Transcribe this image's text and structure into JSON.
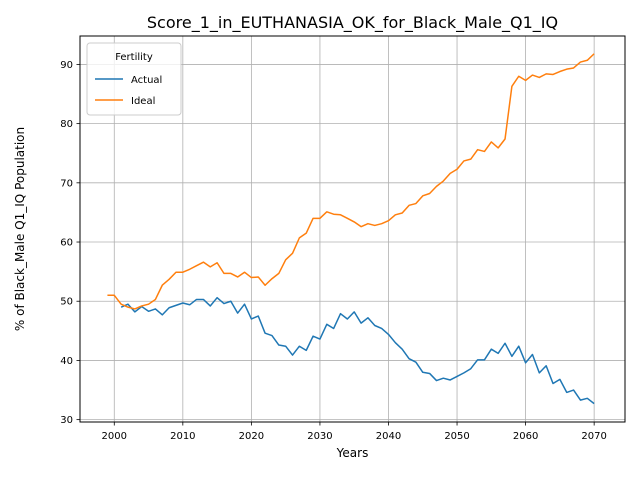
{
  "chart_data": {
    "type": "line",
    "title": "Score_1_in_EUTHANASIA_OK_for_Black_Male_Q1_IQ",
    "xlabel": "Years",
    "ylabel": "% of Black_Male Q1_IQ Population",
    "xlim": [
      1995,
      2074.5
    ],
    "ylim": [
      29.6,
      94.8
    ],
    "xticks": [
      2000,
      2010,
      2020,
      2030,
      2040,
      2050,
      2060,
      2070
    ],
    "yticks": [
      30,
      40,
      50,
      60,
      70,
      80,
      90
    ],
    "grid": true,
    "legend": {
      "title": "Fertility",
      "placement": "top-left"
    },
    "series": [
      {
        "name": "Actual",
        "color": "#1f77b4",
        "x": [
          2001,
          2002,
          2003,
          2004,
          2005,
          2006,
          2007,
          2008,
          2009,
          2010,
          2011,
          2012,
          2013,
          2014,
          2015,
          2016,
          2017,
          2018,
          2019,
          2020,
          2021,
          2022,
          2023,
          2024,
          2025,
          2026,
          2027,
          2028,
          2029,
          2030,
          2031,
          2032,
          2033,
          2034,
          2035,
          2036,
          2037,
          2038,
          2039,
          2040,
          2041,
          2042,
          2043,
          2044,
          2045,
          2046,
          2047,
          2048,
          2049,
          2050,
          2051,
          2052,
          2053,
          2054,
          2055,
          2056,
          2057,
          2058,
          2059,
          2060,
          2061,
          2062,
          2063,
          2064,
          2065,
          2066,
          2067,
          2068,
          2069,
          2070
        ],
        "y": [
          49.0,
          49.5,
          48.2,
          49.1,
          48.3,
          48.7,
          47.7,
          48.9,
          49.3,
          49.7,
          49.4,
          50.3,
          50.3,
          49.2,
          50.6,
          49.6,
          50.0,
          48.0,
          49.5,
          47.0,
          47.5,
          44.6,
          44.2,
          42.6,
          42.4,
          40.9,
          42.4,
          41.7,
          44.1,
          43.6,
          46.1,
          45.4,
          47.9,
          47.0,
          48.2,
          46.3,
          47.2,
          45.9,
          45.4,
          44.4,
          43.0,
          41.9,
          40.3,
          39.7,
          38.0,
          37.8,
          36.6,
          37.0,
          36.7,
          37.3,
          37.9,
          38.6,
          40.1,
          40.1,
          41.9,
          41.2,
          42.9,
          40.7,
          42.4,
          39.6,
          41.0,
          37.9,
          39.1,
          36.1,
          36.8,
          34.6,
          35.0,
          33.3,
          33.6,
          32.7
        ]
      },
      {
        "name": "Ideal",
        "color": "#ff7f0e",
        "x": [
          1999,
          2000,
          2001,
          2002,
          2003,
          2004,
          2005,
          2006,
          2007,
          2008,
          2009,
          2010,
          2011,
          2012,
          2013,
          2014,
          2015,
          2016,
          2017,
          2018,
          2019,
          2020,
          2021,
          2022,
          2023,
          2024,
          2025,
          2026,
          2027,
          2028,
          2029,
          2030,
          2031,
          2032,
          2033,
          2034,
          2035,
          2036,
          2037,
          2038,
          2039,
          2040,
          2041,
          2042,
          2043,
          2044,
          2045,
          2046,
          2047,
          2048,
          2049,
          2050,
          2051,
          2052,
          2053,
          2054,
          2055,
          2056,
          2057,
          2058,
          2059,
          2060,
          2061,
          2062,
          2063,
          2064,
          2065,
          2066,
          2067,
          2068,
          2069,
          2070
        ],
        "y": [
          51.0,
          51.0,
          49.5,
          49.0,
          48.7,
          49.2,
          49.5,
          50.3,
          52.7,
          53.7,
          54.9,
          54.9,
          55.4,
          56.0,
          56.6,
          55.8,
          56.5,
          54.7,
          54.7,
          54.1,
          54.9,
          54.0,
          54.1,
          52.7,
          53.8,
          54.7,
          57.0,
          58.1,
          60.7,
          61.5,
          64.0,
          64.0,
          65.1,
          64.7,
          64.6,
          64.0,
          63.4,
          62.6,
          63.1,
          62.8,
          63.1,
          63.6,
          64.6,
          64.9,
          66.2,
          66.5,
          67.8,
          68.2,
          69.4,
          70.3,
          71.6,
          72.3,
          73.7,
          74.0,
          75.6,
          75.3,
          76.9,
          75.9,
          77.4,
          86.3,
          88.0,
          87.3,
          88.2,
          87.8,
          88.4,
          88.3,
          88.8,
          89.2,
          89.4,
          90.4,
          90.7,
          91.8
        ]
      }
    ]
  }
}
